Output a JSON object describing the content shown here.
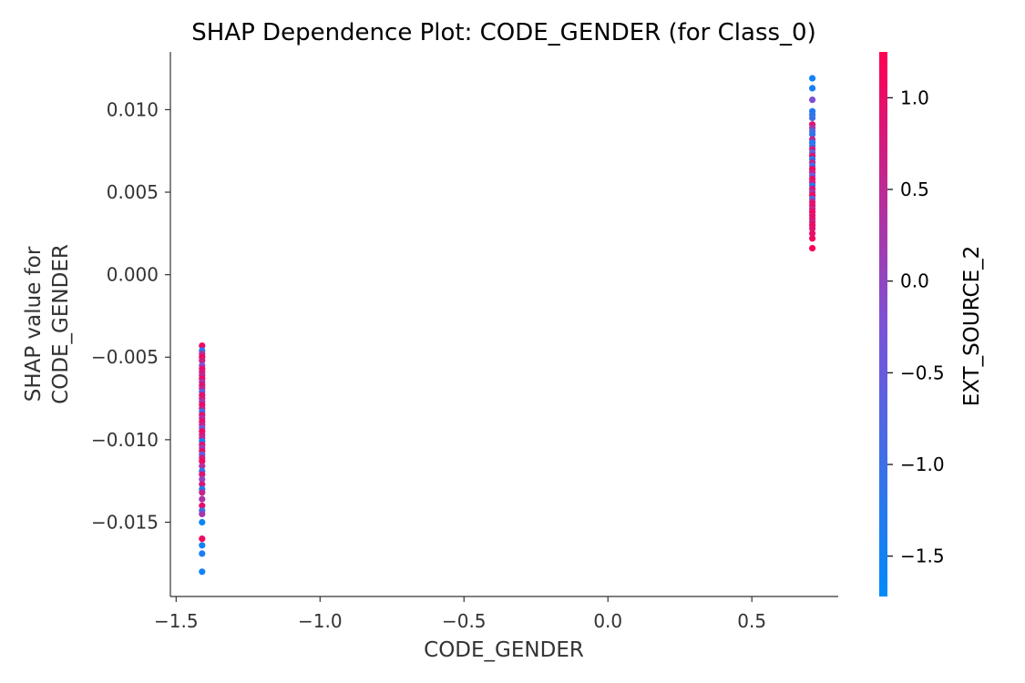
{
  "chart_data": {
    "type": "scatter",
    "title": "SHAP Dependence Plot: CODE_GENDER (for Class_0)",
    "xlabel": "CODE_GENDER",
    "ylabel_lines": [
      "SHAP value for",
      "CODE_GENDER"
    ],
    "colorbar_label": "EXT_SOURCE_2",
    "xlim": [
      -1.52,
      0.8
    ],
    "ylim": [
      -0.0195,
      0.0135
    ],
    "x_ticks": [
      -1.5,
      -1.0,
      -0.5,
      0.0,
      0.5
    ],
    "x_tick_labels": [
      "−1.5",
      "−1.0",
      "−0.5",
      "0.0",
      "0.5"
    ],
    "y_ticks": [
      0.01,
      0.005,
      0.0,
      -0.005,
      -0.01,
      -0.015
    ],
    "y_tick_labels": [
      "0.010",
      "0.005",
      "0.000",
      "−0.005",
      "−0.010",
      "−0.015"
    ],
    "colorbar_range": [
      -1.72,
      1.25
    ],
    "colorbar_ticks": [
      1.0,
      0.5,
      0.0,
      -0.5,
      -1.0,
      -1.5
    ],
    "colorbar_tick_labels": [
      "1.0",
      "0.5",
      "0.0",
      "−0.5",
      "−1.0",
      "−1.5"
    ],
    "colormap": [
      "#008afb",
      "#7c52d6",
      "#ff0052"
    ],
    "grid": false,
    "series": [
      {
        "x_value": -1.41,
        "points": [
          [
            -0.0043,
            1.0
          ],
          [
            -0.0046,
            -1.3
          ],
          [
            -0.0048,
            0.4
          ],
          [
            -0.005,
            1.1
          ],
          [
            -0.0052,
            0.7
          ],
          [
            -0.0055,
            -0.2
          ],
          [
            -0.0057,
            1.0
          ],
          [
            -0.0059,
            0.8
          ],
          [
            -0.0061,
            0.5
          ],
          [
            -0.0063,
            1.1
          ],
          [
            -0.0065,
            0.3
          ],
          [
            -0.0067,
            0.9
          ],
          [
            -0.0069,
            0.6
          ],
          [
            -0.0071,
            -0.7
          ],
          [
            -0.0073,
            1.0
          ],
          [
            -0.0075,
            0.8
          ],
          [
            -0.0077,
            0.2
          ],
          [
            -0.0079,
            1.1
          ],
          [
            -0.0081,
            0.7
          ],
          [
            -0.0083,
            -1.0
          ],
          [
            -0.0085,
            0.9
          ],
          [
            -0.0087,
            0.4
          ],
          [
            -0.0089,
            1.0
          ],
          [
            -0.0091,
            0.6
          ],
          [
            -0.0093,
            -0.3
          ],
          [
            -0.0095,
            1.1
          ],
          [
            -0.0097,
            0.8
          ],
          [
            -0.0099,
            0.5
          ],
          [
            -0.0101,
            -1.4
          ],
          [
            -0.0103,
            0.9
          ],
          [
            -0.0105,
            0.2
          ],
          [
            -0.0107,
            1.0
          ],
          [
            -0.0109,
            -0.6
          ],
          [
            -0.0111,
            0.7
          ],
          [
            -0.0113,
            1.1
          ],
          [
            -0.0116,
            0.4
          ],
          [
            -0.0119,
            -1.2
          ],
          [
            -0.0121,
            0.9
          ],
          [
            -0.0124,
            0.0
          ],
          [
            -0.0127,
            0.8
          ],
          [
            -0.013,
            -1.4
          ],
          [
            -0.0132,
            0.6
          ],
          [
            -0.0136,
            0.3
          ],
          [
            -0.014,
            1.0
          ],
          [
            -0.0143,
            -1.1
          ],
          [
            -0.0145,
            0.2
          ],
          [
            -0.015,
            -1.6
          ],
          [
            -0.016,
            1.1
          ],
          [
            -0.0164,
            -1.5
          ],
          [
            -0.0169,
            -1.4
          ],
          [
            -0.018,
            -1.5
          ]
        ]
      },
      {
        "x_value": 0.71,
        "points": [
          [
            0.0119,
            -1.5
          ],
          [
            0.0113,
            -1.4
          ],
          [
            0.0106,
            -0.2
          ],
          [
            0.0099,
            -1.3
          ],
          [
            0.0097,
            -1.2
          ],
          [
            0.0095,
            -1.0
          ],
          [
            0.0091,
            0.9
          ],
          [
            0.0089,
            0.3
          ],
          [
            0.0087,
            -0.8
          ],
          [
            0.0085,
            -1.1
          ],
          [
            0.0082,
            0.6
          ],
          [
            0.008,
            -1.4
          ],
          [
            0.0078,
            -1.0
          ],
          [
            0.0076,
            0.8
          ],
          [
            0.0074,
            -0.6
          ],
          [
            0.0072,
            1.0
          ],
          [
            0.007,
            -1.3
          ],
          [
            0.0068,
            0.5
          ],
          [
            0.0066,
            -0.9
          ],
          [
            0.0064,
            1.1
          ],
          [
            0.0062,
            0.7
          ],
          [
            0.006,
            -0.4
          ],
          [
            0.0058,
            1.0
          ],
          [
            0.0056,
            0.8
          ],
          [
            0.0054,
            -1.2
          ],
          [
            0.0052,
            0.9
          ],
          [
            0.005,
            0.3
          ],
          [
            0.0048,
            1.1
          ],
          [
            0.0046,
            -0.7
          ],
          [
            0.0044,
            0.8
          ],
          [
            0.0042,
            1.0
          ],
          [
            0.004,
            0.6
          ],
          [
            0.0038,
            1.1
          ],
          [
            0.0036,
            0.9
          ],
          [
            0.0034,
            1.0
          ],
          [
            0.0032,
            0.7
          ],
          [
            0.003,
            1.1
          ],
          [
            0.0028,
            0.9
          ],
          [
            0.0025,
            1.0
          ],
          [
            0.0022,
            1.1
          ],
          [
            0.0016,
            1.2
          ]
        ]
      }
    ]
  }
}
